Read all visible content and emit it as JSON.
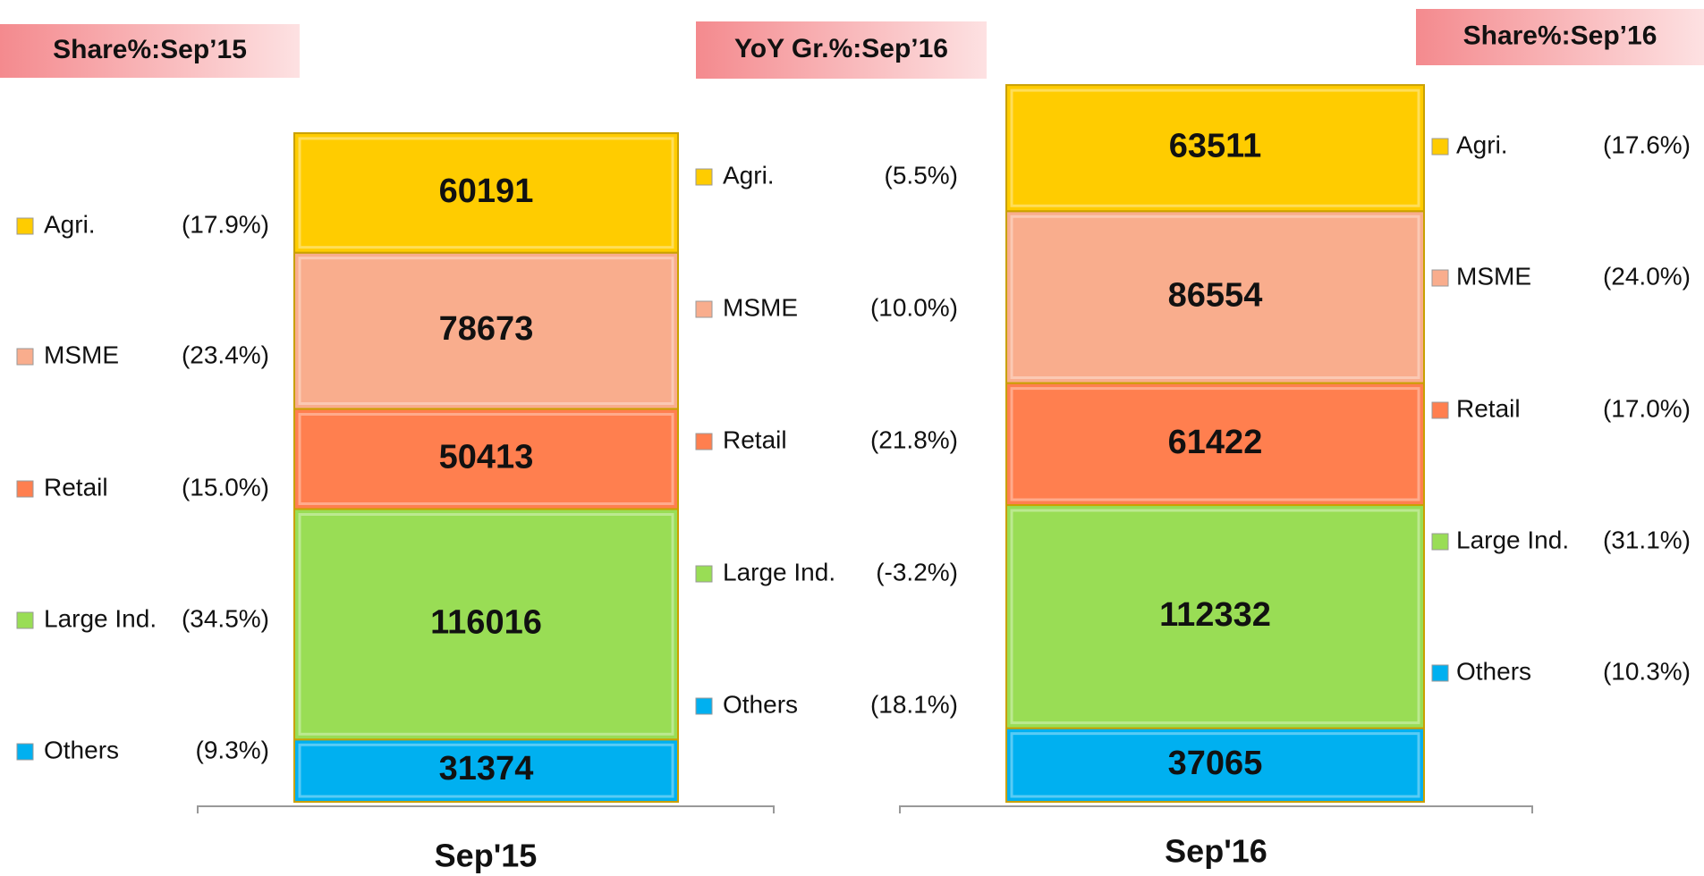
{
  "chart_data": {
    "type": "stacked_bar",
    "categories": [
      "Sep'15",
      "Sep'16"
    ],
    "series": [
      {
        "name": "Agri.",
        "color": "#FFCC00",
        "values": [
          60191,
          63511
        ]
      },
      {
        "name": "MSME",
        "color": "#F9AD8D",
        "values": [
          78673,
          86554
        ]
      },
      {
        "name": "Retail",
        "color": "#FF7F4F",
        "values": [
          50413,
          61422
        ]
      },
      {
        "name": "Large Ind.",
        "color": "#99DD55",
        "values": [
          116016,
          112332
        ]
      },
      {
        "name": "Others",
        "color": "#00B0F0",
        "values": [
          31374,
          37065
        ]
      }
    ],
    "panels": [
      {
        "title": "Share%:Sep’15",
        "labels": [
          "(17.9%)",
          "(23.4%)",
          "(15.0%)",
          "(34.5%)",
          "(9.3%)"
        ]
      },
      {
        "title": "YoY Gr.%:Sep’16",
        "labels": [
          "(5.5%)",
          "(10.0%)",
          "(21.8%)",
          "(-3.2%)",
          "(18.1%)"
        ]
      },
      {
        "title": "Share%:Sep’16",
        "labels": [
          "(17.6%)",
          "(24.0%)",
          "(17.0%)",
          "(31.1%)",
          "(10.3%)"
        ]
      }
    ]
  }
}
